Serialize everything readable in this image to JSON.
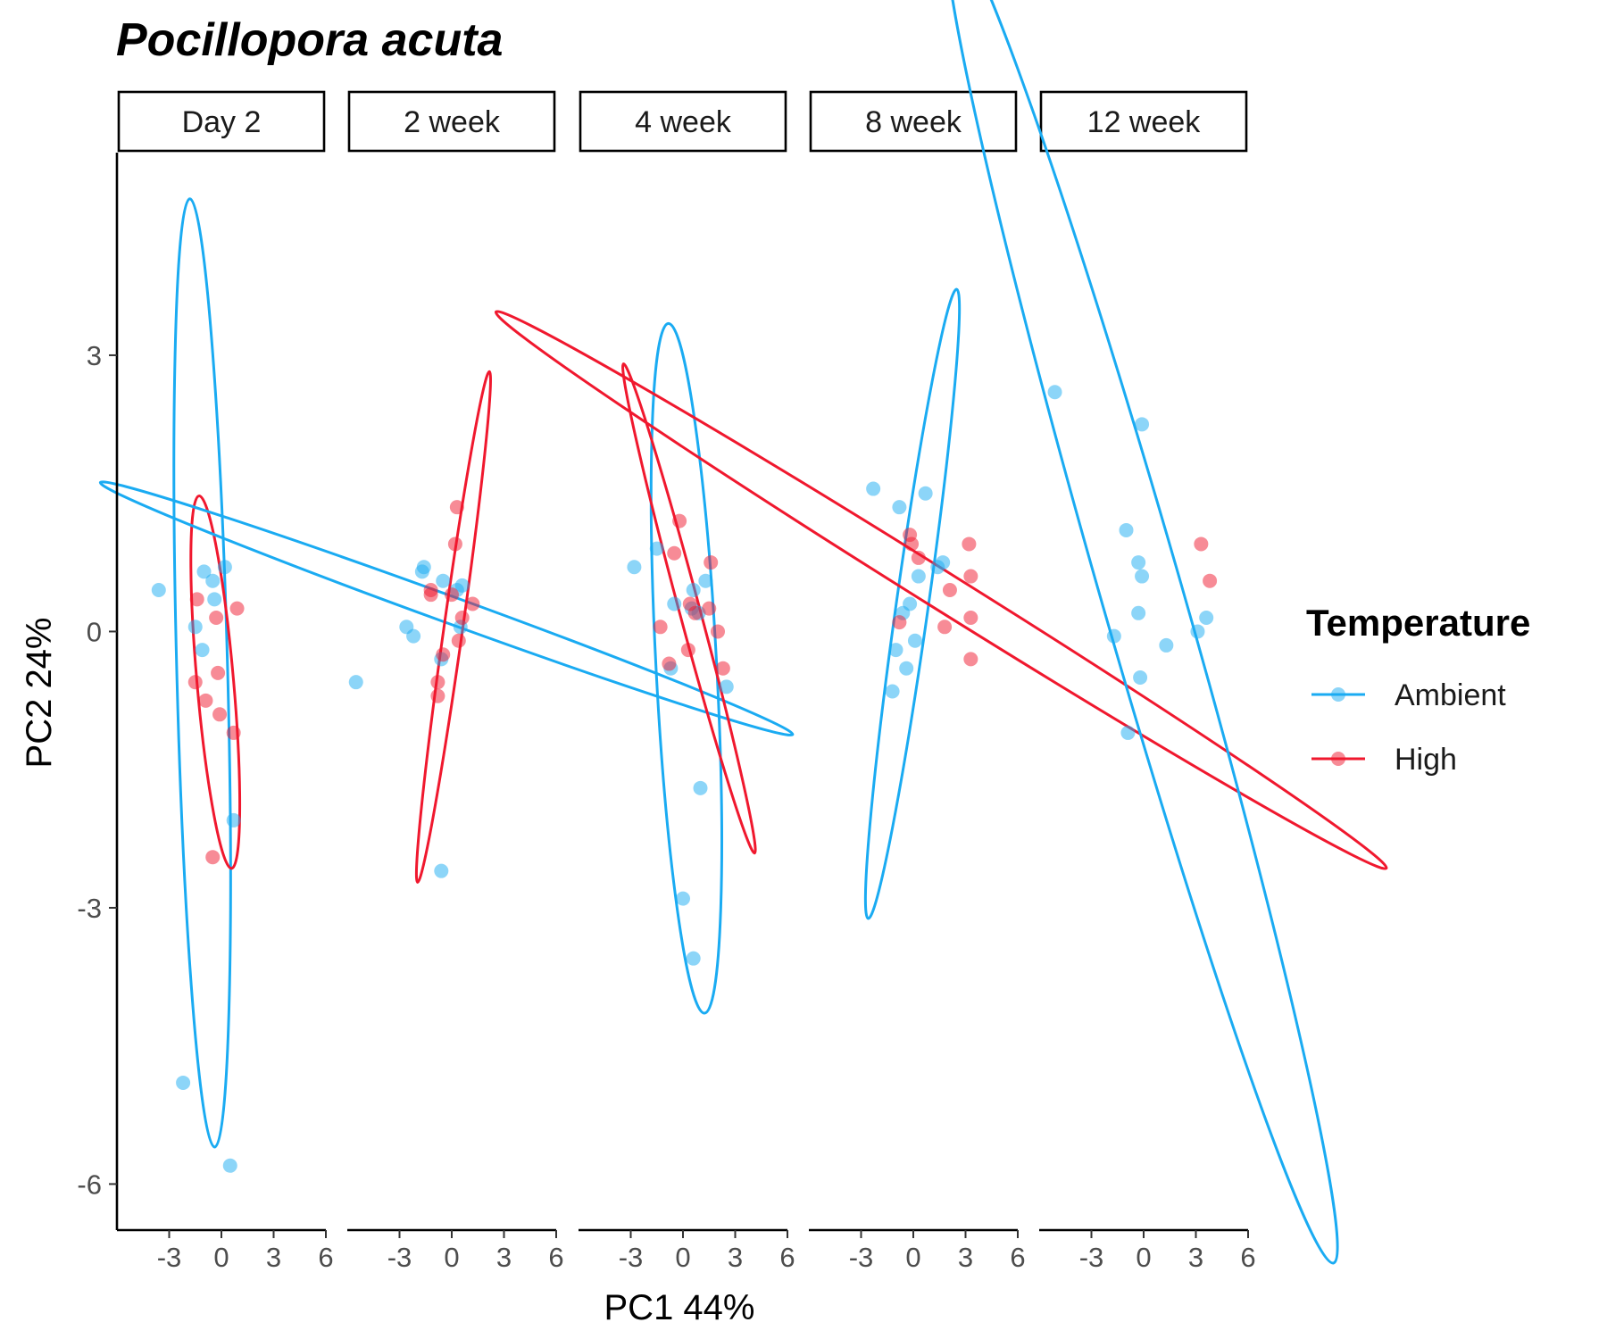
{
  "chart_data": {
    "type": "scatter",
    "title": "Pocillopora acuta",
    "xlabel": "PC1 44%",
    "ylabel": "PC2 24%",
    "xlim": [
      -6,
      6
    ],
    "ylim": [
      -6.5,
      5.2
    ],
    "x_ticks": [
      -3,
      0,
      3,
      6
    ],
    "x_tick_labels": [
      "-3",
      "0",
      "3",
      "6"
    ],
    "y_ticks": [
      -6,
      -3,
      0,
      3
    ],
    "y_tick_labels": [
      "-6",
      "-3",
      "0",
      "3"
    ],
    "grid": false,
    "legend": {
      "title": "Temperature",
      "placement": "right",
      "entries": [
        {
          "name": "Ambient",
          "color": "#1AABF2"
        },
        {
          "name": "High",
          "color": "#F0182E"
        }
      ]
    },
    "panels": [
      {
        "label": "Day 2",
        "series": [
          {
            "name": "Ambient",
            "color": "#1AABF2",
            "points": [
              [
                -3.6,
                0.45
              ],
              [
                -1.5,
                0.05
              ],
              [
                -1.0,
                0.65
              ],
              [
                -0.5,
                0.55
              ],
              [
                0.2,
                0.7
              ],
              [
                -0.4,
                0.35
              ],
              [
                -1.1,
                -0.2
              ],
              [
                0.7,
                -2.05
              ],
              [
                -2.2,
                -4.9
              ],
              [
                0.5,
                -5.8
              ]
            ],
            "ellipse": {
              "cx": -1.1,
              "cy": -0.45,
              "rx": 2.85,
              "ry": 5.15,
              "angle": -1.5
            }
          },
          {
            "name": "High",
            "color": "#F0182E",
            "points": [
              [
                -1.4,
                0.35
              ],
              [
                -0.3,
                0.15
              ],
              [
                0.9,
                0.25
              ],
              [
                -1.5,
                -0.55
              ],
              [
                -0.2,
                -0.45
              ],
              [
                -0.9,
                -0.75
              ],
              [
                -0.1,
                -0.9
              ],
              [
                0.7,
                -1.1
              ],
              [
                -0.5,
                -2.45
              ]
            ],
            "ellipse": {
              "cx": -0.35,
              "cy": -0.55,
              "rx": 2.05,
              "ry": 2.03,
              "angle": -5
            }
          }
        ]
      },
      {
        "label": "2 week",
        "series": [
          {
            "name": "Ambient",
            "color": "#1AABF2",
            "points": [
              [
                -5.5,
                -0.55
              ],
              [
                -2.6,
                0.05
              ],
              [
                -2.2,
                -0.05
              ],
              [
                -1.6,
                0.7
              ],
              [
                -1.7,
                0.65
              ],
              [
                -0.5,
                0.55
              ],
              [
                0.3,
                0.45
              ],
              [
                0.6,
                0.5
              ],
              [
                0.5,
                0.05
              ],
              [
                -0.6,
                -0.3
              ],
              [
                -0.6,
                -2.6
              ]
            ],
            "ellipse": {
              "cx": -0.3,
              "cy": 0.25,
              "rx": 1.5,
              "ry": 4.0,
              "angle": -70
            }
          },
          {
            "name": "High",
            "color": "#F0182E",
            "points": [
              [
                0.3,
                1.35
              ],
              [
                0.2,
                0.95
              ],
              [
                -1.2,
                0.4
              ],
              [
                -1.2,
                0.45
              ],
              [
                0.0,
                0.4
              ],
              [
                1.2,
                0.3
              ],
              [
                0.6,
                0.15
              ],
              [
                -0.5,
                -0.25
              ],
              [
                0.4,
                -0.1
              ],
              [
                -0.8,
                -0.55
              ],
              [
                -0.8,
                -0.7
              ]
            ],
            "ellipse": {
              "cx": 0.1,
              "cy": 0.05,
              "rx": 1.05,
              "ry": 2.8,
              "angle": 8
            }
          }
        ]
      },
      {
        "label": "4 week",
        "series": [
          {
            "name": "Ambient",
            "color": "#1AABF2",
            "points": [
              [
                -2.8,
                0.7
              ],
              [
                -1.5,
                0.9
              ],
              [
                -0.5,
                0.3
              ],
              [
                0.6,
                0.45
              ],
              [
                1.3,
                0.55
              ],
              [
                0.5,
                0.25
              ],
              [
                0.9,
                0.2
              ],
              [
                -0.7,
                -0.4
              ],
              [
                2.5,
                -0.6
              ],
              [
                1.0,
                -1.7
              ],
              [
                0.0,
                -2.9
              ],
              [
                0.6,
                -3.55
              ]
            ],
            "ellipse": {
              "cx": 0.2,
              "cy": -0.4,
              "rx": 3.4,
              "ry": 3.75,
              "angle": -3
            }
          },
          {
            "name": "High",
            "color": "#F0182E",
            "points": [
              [
                -0.2,
                1.2
              ],
              [
                -0.5,
                0.85
              ],
              [
                1.6,
                0.75
              ],
              [
                0.4,
                0.3
              ],
              [
                1.5,
                0.25
              ],
              [
                0.7,
                0.2
              ],
              [
                -1.3,
                0.05
              ],
              [
                2.0,
                0.0
              ],
              [
                0.3,
                -0.2
              ],
              [
                -0.8,
                -0.35
              ],
              [
                2.3,
                -0.4
              ]
            ],
            "ellipse": {
              "cx": 0.35,
              "cy": 0.25,
              "rx": 1.15,
              "ry": 2.75,
              "angle": -15
            }
          }
        ]
      },
      {
        "label": "8 week",
        "series": [
          {
            "name": "Ambient",
            "color": "#1AABF2",
            "points": [
              [
                -2.3,
                1.55
              ],
              [
                -0.8,
                1.35
              ],
              [
                0.7,
                1.5
              ],
              [
                1.7,
                0.75
              ],
              [
                1.4,
                0.7
              ],
              [
                0.3,
                0.6
              ],
              [
                -0.2,
                0.3
              ],
              [
                -0.6,
                0.2
              ],
              [
                0.1,
                -0.1
              ],
              [
                -1.0,
                -0.2
              ],
              [
                -0.4,
                -0.4
              ],
              [
                -1.2,
                -0.65
              ]
            ],
            "ellipse": {
              "cx": -0.05,
              "cy": 0.3,
              "rx": 1.8,
              "ry": 3.45,
              "angle": 8
            }
          },
          {
            "name": "High",
            "color": "#F0182E",
            "points": [
              [
                -0.2,
                1.05
              ],
              [
                -0.1,
                0.95
              ],
              [
                0.3,
                0.8
              ],
              [
                3.2,
                0.95
              ],
              [
                3.3,
                0.6
              ],
              [
                2.1,
                0.45
              ],
              [
                3.3,
                0.15
              ],
              [
                1.8,
                0.05
              ],
              [
                -0.8,
                0.1
              ],
              [
                3.3,
                -0.3
              ]
            ],
            "ellipse": {
              "cx": 1.6,
              "cy": 0.45,
              "rx": 2.1,
              "ry": 5.7,
              "angle": -58
            }
          }
        ]
      },
      {
        "label": "12 week",
        "series": [
          {
            "name": "Ambient",
            "color": "#1AABF2",
            "points": [
              [
                -5.1,
                2.6
              ],
              [
                -0.1,
                2.25
              ],
              [
                -1.0,
                1.1
              ],
              [
                -0.3,
                0.75
              ],
              [
                -0.1,
                0.6
              ],
              [
                -0.3,
                0.2
              ],
              [
                -1.7,
                -0.05
              ],
              [
                1.3,
                -0.15
              ],
              [
                3.1,
                0.0
              ],
              [
                3.6,
                0.15
              ],
              [
                -0.2,
                -0.5
              ],
              [
                -0.9,
                -1.1
              ]
            ],
            "ellipse": {
              "cx": -0.1,
              "cy": 0.4,
              "rx": 4.55,
              "ry": 7.55,
              "angle": -16
            }
          },
          {
            "name": "High",
            "color": "#F0182E",
            "points": [
              [
                3.3,
                0.95
              ],
              [
                3.8,
                0.55
              ]
            ],
            "ellipse": null
          }
        ]
      }
    ]
  }
}
